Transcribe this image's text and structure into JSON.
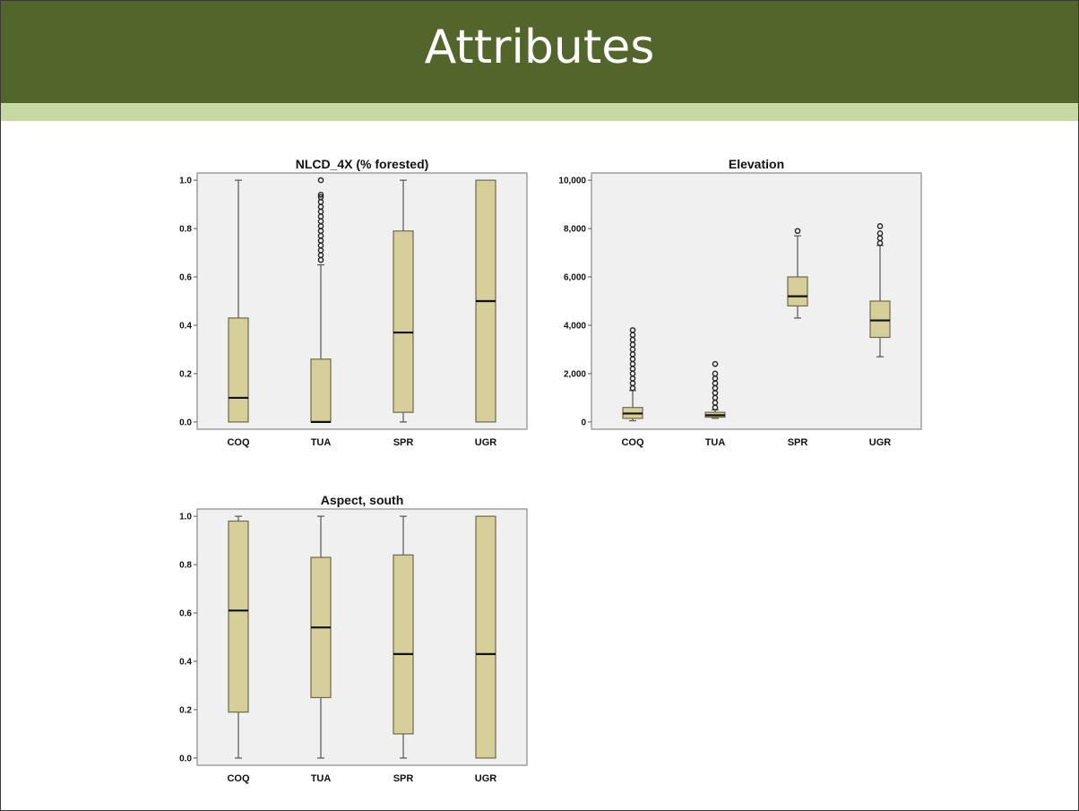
{
  "slide": {
    "title": "Attributes"
  },
  "colors": {
    "header": "#52652b",
    "stripe": "#c5d9a0",
    "plot_bg": "#f0f0f0",
    "box_fill": "#d6cf99",
    "box_stroke": "#6b6b4a"
  },
  "chart_data": [
    {
      "type": "boxplot",
      "title": "NLCD_4X (% forested)",
      "categories": [
        "COQ",
        "TUA",
        "SPR",
        "UGR"
      ],
      "ylim": [
        -0.03,
        1.03
      ],
      "yticks": [
        0.0,
        0.2,
        0.4,
        0.6,
        0.8,
        1.0
      ],
      "ytick_labels": [
        "0.0",
        "0.2",
        "0.4",
        "0.6",
        "0.8",
        "1.0"
      ],
      "boxes": [
        {
          "min": 0.0,
          "q1": 0.0,
          "median": 0.1,
          "q3": 0.43,
          "max": 1.0,
          "outliers": []
        },
        {
          "min": 0.0,
          "q1": 0.0,
          "median": 0.0,
          "q3": 0.26,
          "max": 0.65,
          "outliers": [
            0.67,
            0.69,
            0.71,
            0.73,
            0.75,
            0.77,
            0.79,
            0.81,
            0.83,
            0.85,
            0.87,
            0.89,
            0.91,
            0.93,
            0.94,
            1.0
          ]
        },
        {
          "min": 0.0,
          "q1": 0.04,
          "median": 0.37,
          "q3": 0.79,
          "max": 1.0,
          "outliers": []
        },
        {
          "min": 0.0,
          "q1": 0.0,
          "median": 0.5,
          "q3": 1.0,
          "max": 1.0,
          "outliers": []
        }
      ]
    },
    {
      "type": "boxplot",
      "title": "Elevation",
      "categories": [
        "COQ",
        "TUA",
        "SPR",
        "UGR"
      ],
      "ylim": [
        -300,
        10300
      ],
      "yticks": [
        0,
        2000,
        4000,
        6000,
        8000,
        10000
      ],
      "ytick_labels": [
        "0",
        "2,000",
        "4,000",
        "6,000",
        "8,000",
        "10,000"
      ],
      "boxes": [
        {
          "min": 50,
          "q1": 150,
          "median": 350,
          "q3": 600,
          "max": 1300,
          "outliers": [
            1400,
            1600,
            1800,
            2000,
            2200,
            2400,
            2600,
            2800,
            3000,
            3200,
            3400,
            3600,
            3800
          ]
        },
        {
          "min": 150,
          "q1": 200,
          "median": 280,
          "q3": 400,
          "max": 500,
          "outliers": [
            600,
            800,
            1000,
            1200,
            1400,
            1600,
            1800,
            2000,
            2400
          ]
        },
        {
          "min": 4300,
          "q1": 4800,
          "median": 5200,
          "q3": 6000,
          "max": 7700,
          "outliers": [
            7900
          ]
        },
        {
          "min": 2700,
          "q1": 3500,
          "median": 4200,
          "q3": 5000,
          "max": 7300,
          "outliers": [
            7400,
            7600,
            7800,
            8100
          ]
        }
      ]
    },
    {
      "type": "boxplot",
      "title": "Aspect, south",
      "categories": [
        "COQ",
        "TUA",
        "SPR",
        "UGR"
      ],
      "ylim": [
        -0.03,
        1.03
      ],
      "yticks": [
        0.0,
        0.2,
        0.4,
        0.6,
        0.8,
        1.0
      ],
      "ytick_labels": [
        "0.0",
        "0.2",
        "0.4",
        "0.6",
        "0.8",
        "1.0"
      ],
      "boxes": [
        {
          "min": 0.0,
          "q1": 0.19,
          "median": 0.61,
          "q3": 0.98,
          "max": 1.0,
          "outliers": []
        },
        {
          "min": 0.0,
          "q1": 0.25,
          "median": 0.54,
          "q3": 0.83,
          "max": 1.0,
          "outliers": []
        },
        {
          "min": 0.0,
          "q1": 0.1,
          "median": 0.43,
          "q3": 0.84,
          "max": 1.0,
          "outliers": []
        },
        {
          "min": 0.0,
          "q1": 0.0,
          "median": 0.43,
          "q3": 1.0,
          "max": 1.0,
          "outliers": []
        }
      ]
    }
  ]
}
